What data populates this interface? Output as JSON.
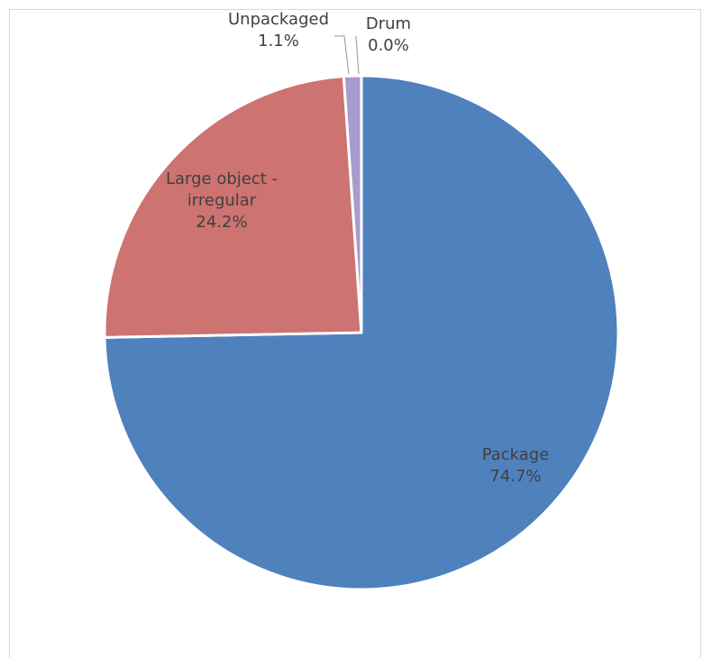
{
  "chart_data": {
    "type": "pie",
    "title": "",
    "start_angle_deg": 0,
    "direction": "clockwise",
    "slices": [
      {
        "name": "Package",
        "label_lines": [
          "Package"
        ],
        "percent_label": "74.7%",
        "value": 74.7,
        "color": "#4f81bd"
      },
      {
        "name": "Large object - irregular",
        "label_lines": [
          "Large object -",
          "irregular"
        ],
        "percent_label": "24.2%",
        "value": 24.2,
        "color": "#cd7371"
      },
      {
        "name": "Unpackaged",
        "label_lines": [
          "Unpackaged"
        ],
        "percent_label": "1.1%",
        "value": 1.1,
        "color": "#a99bce"
      },
      {
        "name": "Drum",
        "label_lines": [
          "Drum"
        ],
        "percent_label": "0.0%",
        "value": 0.0,
        "color": "#9bbb59"
      }
    ],
    "legend": "none",
    "slice_border_color": "#ffffff"
  }
}
